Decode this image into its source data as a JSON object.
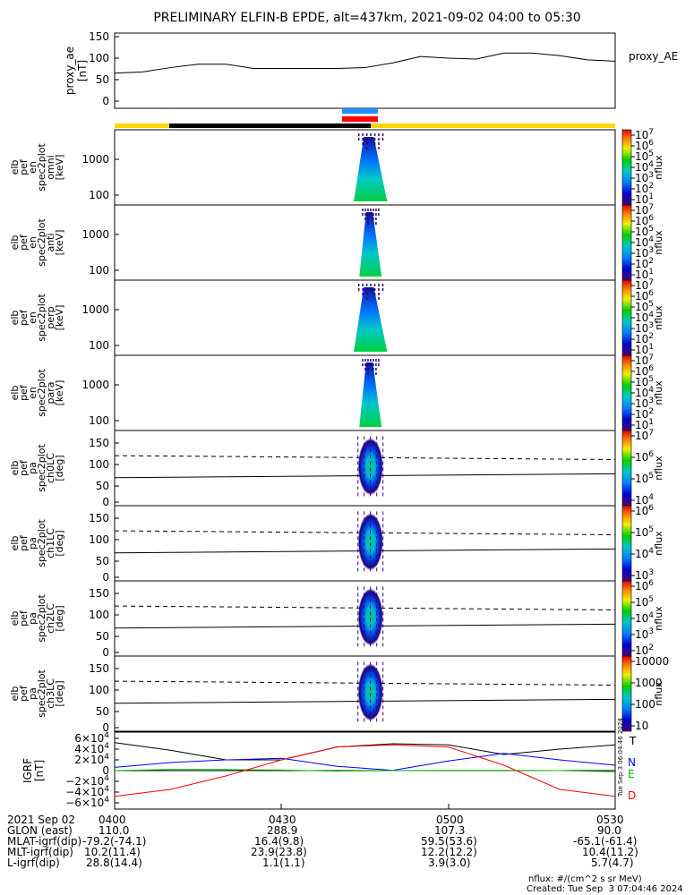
{
  "title": "PRELIMINARY ELFIN-B EPDE, alt=437km, 2021-09-02 04:00 to 05:30",
  "chart_data": [
    {
      "type": "line",
      "panel": "proxy_ae",
      "ylabel": [
        "proxy_ae",
        "[nT]"
      ],
      "legend": "proxy_AE",
      "y_ticks": [
        "150",
        "100",
        "50",
        "0"
      ],
      "ylim": [
        0,
        150
      ],
      "x_minutes": [
        0,
        5,
        10,
        15,
        20,
        25,
        30,
        35,
        40,
        45,
        50,
        55,
        60,
        65,
        70,
        75,
        80,
        85,
        90
      ],
      "values": [
        65,
        68,
        78,
        86,
        86,
        76,
        76,
        76,
        76,
        78,
        89,
        104,
        100,
        98,
        112,
        112,
        106,
        96,
        93
      ]
    },
    {
      "type": "heatmap",
      "panel": "elb_pef_en_spec2plot_omni",
      "ylabel": [
        "elb",
        "pef",
        "en",
        "spec2plot",
        "omni",
        "[keV]"
      ],
      "y_ticks": [
        "1000",
        "100"
      ],
      "scale": "log",
      "colorbar_ticks": [
        "10^7",
        "10^6",
        "10^5",
        "10^4",
        "10^3",
        "10^2",
        "10^1"
      ],
      "colorbar_label": "nflux",
      "time_range_min": [
        43,
        49
      ]
    },
    {
      "type": "heatmap",
      "panel": "elb_pef_en_spec2plot_anti",
      "ylabel": [
        "elb",
        "pef",
        "en",
        "spec2plot",
        "anti",
        "[keV]"
      ],
      "y_ticks": [
        "1000",
        "100"
      ],
      "scale": "log",
      "colorbar_ticks": [
        "10^7",
        "10^6",
        "10^5",
        "10^4",
        "10^3",
        "10^2",
        "10^1"
      ],
      "colorbar_label": "nflux",
      "time_range_min": [
        44,
        48
      ]
    },
    {
      "type": "heatmap",
      "panel": "elb_pef_en_spec2plot_perp",
      "ylabel": [
        "elb",
        "pef",
        "en",
        "spec2plot",
        "perp",
        "[keV]"
      ],
      "y_ticks": [
        "1000",
        "100"
      ],
      "scale": "log",
      "colorbar_ticks": [
        "10^7",
        "10^6",
        "10^5",
        "10^4",
        "10^3",
        "10^2",
        "10^1"
      ],
      "colorbar_label": "nflux",
      "time_range_min": [
        43,
        49
      ]
    },
    {
      "type": "heatmap",
      "panel": "elb_pef_en_spec2plot_para",
      "ylabel": [
        "elb",
        "pef",
        "en",
        "spec2plot",
        "para",
        "[keV]"
      ],
      "y_ticks": [
        "1000",
        "100"
      ],
      "scale": "log",
      "colorbar_ticks": [
        "10^7",
        "10^6",
        "10^5",
        "10^4",
        "10^3",
        "10^2",
        "10^1"
      ],
      "colorbar_label": "nflux",
      "time_range_min": [
        44,
        48
      ]
    },
    {
      "type": "heatmap",
      "panel": "elb_pef_pa_spec2plot_ch0LC",
      "ylabel": [
        "elb",
        "pef",
        "pa",
        "spec2plot",
        "ch0LC",
        "[deg]"
      ],
      "y_ticks": [
        "150",
        "100",
        "50",
        "0"
      ],
      "ylim": [
        0,
        180
      ],
      "colorbar_ticks": [
        "10^7",
        "10^6",
        "10^5",
        "10^4"
      ],
      "colorbar_label": "nflux",
      "loss_cone_deg": [
        62,
        72
      ],
      "anti_loss_cone_deg": [
        118,
        108
      ]
    },
    {
      "type": "heatmap",
      "panel": "elb_pef_pa_spec2plot_ch1LC",
      "ylabel": [
        "elb",
        "pef",
        "pa",
        "spec2plot",
        "ch1LC",
        "[deg]"
      ],
      "y_ticks": [
        "150",
        "100",
        "50",
        "0"
      ],
      "ylim": [
        0,
        180
      ],
      "colorbar_ticks": [
        "10^6",
        "10^5",
        "10^4",
        "10^3"
      ],
      "colorbar_label": "nflux",
      "loss_cone_deg": [
        62,
        72
      ],
      "anti_loss_cone_deg": [
        118,
        108
      ]
    },
    {
      "type": "heatmap",
      "panel": "elb_pef_pa_spec2plot_ch2LC",
      "ylabel": [
        "elb",
        "pef",
        "pa",
        "spec2plot",
        "ch2LC",
        "[deg]"
      ],
      "y_ticks": [
        "150",
        "100",
        "50",
        "0"
      ],
      "ylim": [
        0,
        180
      ],
      "colorbar_ticks": [
        "10^6",
        "10^5",
        "10^4",
        "10^3",
        "10^2"
      ],
      "colorbar_label": "nflux",
      "loss_cone_deg": [
        62,
        72
      ],
      "anti_loss_cone_deg": [
        118,
        108
      ]
    },
    {
      "type": "heatmap",
      "panel": "elb_pef_pa_spec2plot_ch3LC",
      "ylabel": [
        "elb",
        "pef",
        "pa",
        "spec2plot",
        "ch3LC",
        "[deg]"
      ],
      "y_ticks": [
        "150",
        "100",
        "50",
        "0"
      ],
      "ylim": [
        0,
        180
      ],
      "colorbar_ticks": [
        "10000",
        "1000",
        "100",
        "10"
      ],
      "colorbar_label": "nflux",
      "loss_cone_deg": [
        62,
        72
      ],
      "anti_loss_cone_deg": [
        118,
        108
      ]
    },
    {
      "type": "line",
      "panel": "IGRF",
      "ylabel": [
        "IGRF",
        "[nT]"
      ],
      "y_ticks": [
        "6×10^4",
        "4×10^4",
        "2×10^4",
        "0",
        "−2×10^4",
        "−4×10^4",
        "−6×10^4"
      ],
      "ylim": [
        -60000,
        60000
      ],
      "x_minutes": [
        0,
        10,
        20,
        30,
        40,
        50,
        60,
        70,
        80,
        90
      ],
      "series": [
        {
          "name": "T",
          "color": "#000000",
          "values": [
            52000,
            38000,
            20000,
            20000,
            44000,
            50000,
            48000,
            30000,
            40000,
            48000
          ]
        },
        {
          "name": "N",
          "color": "#0000ff",
          "values": [
            6000,
            15000,
            20000,
            23000,
            8000,
            500,
            18000,
            32000,
            20000,
            10000
          ]
        },
        {
          "name": "E",
          "color": "#00c000",
          "values": [
            0,
            2000,
            2000,
            1000,
            -1000,
            0,
            500,
            500,
            0,
            -2000
          ]
        },
        {
          "name": "D",
          "color": "#ff0000",
          "values": [
            -48000,
            -35000,
            -10000,
            20000,
            44000,
            48000,
            44000,
            10000,
            -35000,
            -48000
          ]
        }
      ]
    }
  ],
  "status_bars": {
    "ephemeris_colors": [
      "#ffd700",
      "#000000",
      "#ffd700"
    ],
    "science_zone_colors": [
      "#1e90ff",
      "#ff0000"
    ]
  },
  "x_axis": {
    "tick_labels": [
      "0400",
      "0430",
      "0500",
      "0530"
    ],
    "date_label": "2021 Sep 02",
    "rows": [
      {
        "label": "GLON (east)",
        "values": [
          "110.0",
          "288.9",
          "107.3",
          "90.0"
        ]
      },
      {
        "label": "MLAT-igrf(dip)",
        "values": [
          "-79.2(-74.1)",
          "16.4(9.8)",
          "59.5(53.6)",
          "-65.1(-61.4)"
        ]
      },
      {
        "label": "MLT-igrf(dip)",
        "values": [
          "10.2(11.4)",
          "23.9(23.8)",
          "12.2(12.2)",
          "10.4(11.2)"
        ]
      },
      {
        "label": "L-igrf(dip)",
        "values": [
          "28.8(14.4)",
          "1.1(1.1)",
          "3.9(3.0)",
          "5.7(4.7)"
        ]
      }
    ]
  },
  "footer": {
    "units": "nflux: #/(cm^2 s sr MeV)",
    "created": "Created: Tue Sep  3 07:04:46 2024",
    "side_stamp": "Tue Sep  3 06:04:46 2024"
  }
}
